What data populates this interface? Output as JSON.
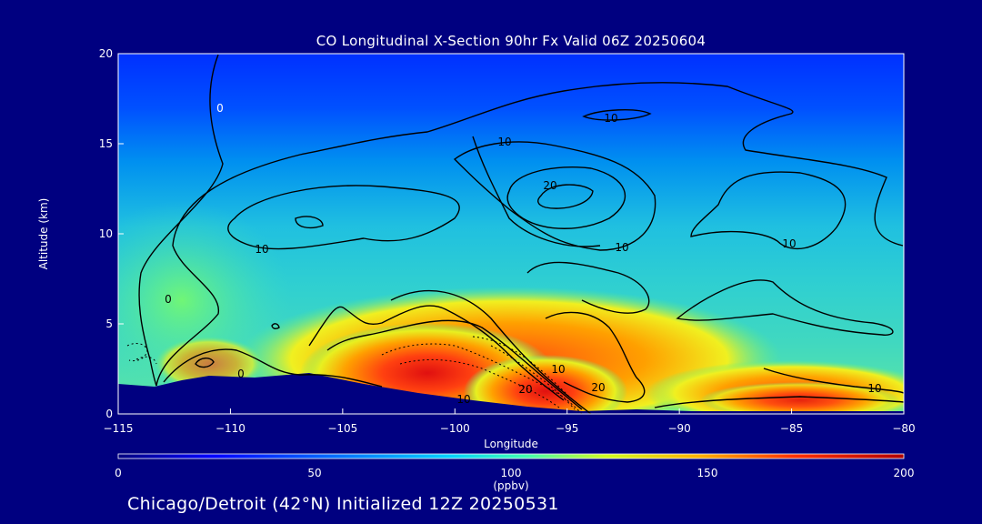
{
  "chart_data": {
    "type": "heatmap",
    "title": "CO Longitudinal X-Section 90hr  Fx Valid 06Z 20250604",
    "xlabel": "Longitude",
    "ylabel": "Altitude (km)",
    "xlim": [
      -115,
      -80
    ],
    "ylim": [
      0,
      20
    ],
    "x_ticks": [
      "-115",
      "-110",
      "-105",
      "-100",
      "-95",
      "-90",
      "-85",
      "-80"
    ],
    "y_ticks": [
      "0",
      "5",
      "10",
      "15",
      "20"
    ],
    "contour_labels": [
      "0",
      "0",
      "0",
      "10",
      "10",
      "10",
      "10",
      "10",
      "20",
      "20",
      "20",
      "10",
      "10",
      "10"
    ],
    "colorbar": {
      "label": "(ppbv)",
      "range": [
        0,
        200
      ],
      "ticks": [
        "0",
        "50",
        "100",
        "150",
        "200"
      ],
      "colors": [
        "#000080",
        "#0000ff",
        "#0070ff",
        "#00d0ff",
        "#40ffb0",
        "#d0ff20",
        "#ffb000",
        "#ff3000",
        "#b00000"
      ]
    },
    "field_centers": [
      {
        "lon": -102,
        "alt": 2.0,
        "value": 190
      },
      {
        "lon": -97,
        "alt": 1.0,
        "value": 195
      },
      {
        "lon": -86,
        "alt": 1.0,
        "value": 170
      },
      {
        "lon": -110,
        "alt": 2.0,
        "value": 130
      }
    ]
  },
  "footer": "Chicago/Detroit (42°N) Initialized 12Z 20250531"
}
